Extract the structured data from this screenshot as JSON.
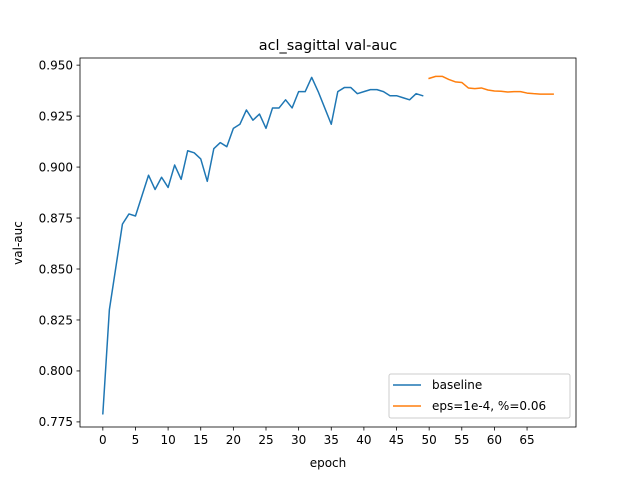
{
  "chart_data": {
    "type": "line",
    "title": "acl_sagittal val-auc",
    "xlabel": "epoch",
    "ylabel": "val-auc",
    "xlim": [
      -3.5,
      72.5
    ],
    "ylim": [
      0.7725,
      0.9535
    ],
    "xticks": [
      0,
      5,
      10,
      15,
      20,
      25,
      30,
      35,
      40,
      45,
      50,
      55,
      60,
      65
    ],
    "yticks": [
      0.775,
      0.8,
      0.825,
      0.85,
      0.875,
      0.9,
      0.925,
      0.95
    ],
    "ytick_labels": [
      "0.775",
      "0.800",
      "0.825",
      "0.850",
      "0.875",
      "0.900",
      "0.925",
      "0.950"
    ],
    "grid": false,
    "legend_position": "lower-right",
    "series": [
      {
        "name": "baseline",
        "color": "#1f77b4",
        "x": [
          0,
          1,
          2,
          3,
          4,
          5,
          6,
          7,
          8,
          9,
          10,
          11,
          12,
          13,
          14,
          15,
          16,
          17,
          18,
          19,
          20,
          21,
          22,
          23,
          24,
          25,
          26,
          27,
          28,
          29,
          30,
          31,
          32,
          33,
          34,
          35,
          36,
          37,
          38,
          39,
          40,
          41,
          42,
          43,
          44,
          45,
          46,
          47,
          48,
          49
        ],
        "y": [
          0.779,
          0.83,
          0.851,
          0.872,
          0.877,
          0.876,
          0.886,
          0.896,
          0.889,
          0.895,
          0.89,
          0.901,
          0.894,
          0.908,
          0.907,
          0.904,
          0.893,
          0.909,
          0.912,
          0.91,
          0.919,
          0.921,
          0.928,
          0.923,
          0.926,
          0.919,
          0.929,
          0.929,
          0.933,
          0.929,
          0.937,
          0.937,
          0.944,
          0.937,
          0.929,
          0.921,
          0.937,
          0.939,
          0.939,
          0.936,
          0.937,
          0.938,
          0.938,
          0.937,
          0.935,
          0.935,
          0.934,
          0.933,
          0.936,
          0.935
        ]
      },
      {
        "name": "eps=1e-4, %=0.06",
        "color": "#ff7f0e",
        "x": [
          50,
          51,
          52,
          53,
          54,
          55,
          56,
          57,
          58,
          59,
          60,
          61,
          62,
          63,
          64,
          65,
          66,
          67,
          68,
          69
        ],
        "y": [
          0.9435,
          0.9445,
          0.9445,
          0.943,
          0.9418,
          0.9415,
          0.9388,
          0.9385,
          0.9388,
          0.9378,
          0.9373,
          0.9372,
          0.9368,
          0.937,
          0.937,
          0.9363,
          0.936,
          0.9358,
          0.9358,
          0.9358
        ]
      }
    ]
  }
}
